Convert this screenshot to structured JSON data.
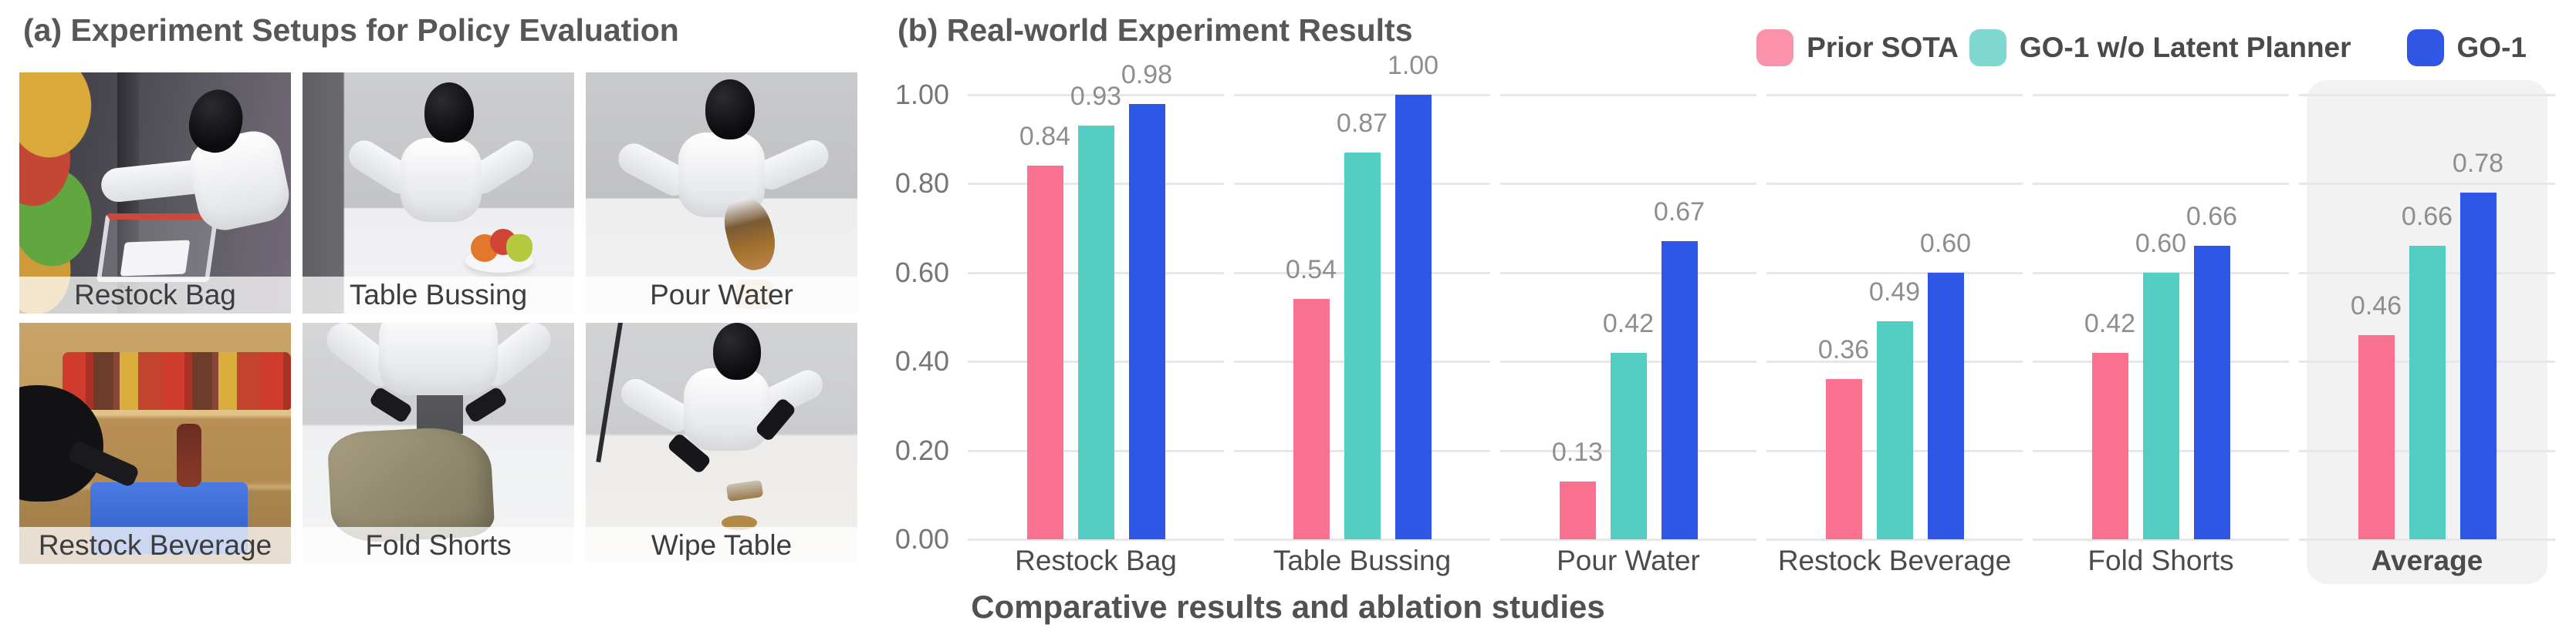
{
  "panel_a": {
    "title": "(a) Experiment Setups for Policy Evaluation",
    "tiles": [
      {
        "label": "Restock Bag"
      },
      {
        "label": "Table Bussing"
      },
      {
        "label": "Pour Water"
      },
      {
        "label": "Restock Beverage"
      },
      {
        "label": "Fold Shorts"
      },
      {
        "label": "Wipe Table"
      }
    ]
  },
  "panel_b": {
    "title": "(b) Real-world Experiment Results",
    "caption": "Comparative results and ablation studies"
  },
  "legend": [
    {
      "label": "Prior SOTA",
      "swatch_color": "#FA92AB"
    },
    {
      "label": "GO-1 w/o Latent Planner",
      "swatch_color": "#7ED8CF"
    },
    {
      "label": "GO-1",
      "swatch_color": "#3056E3"
    }
  ],
  "chart_data": {
    "type": "bar",
    "title": "(b) Real-world Experiment Results",
    "categories": [
      "Restock Bag",
      "Table Bussing",
      "Pour Water",
      "Restock Beverage",
      "Fold Shorts",
      "Average"
    ],
    "series": [
      {
        "name": "Prior SOTA",
        "color": "#FA7190",
        "values": [
          0.84,
          0.54,
          0.13,
          0.36,
          0.42,
          0.46
        ]
      },
      {
        "name": "GO-1 w/o Latent Planner",
        "color": "#54CDC3",
        "values": [
          0.93,
          0.87,
          0.42,
          0.49,
          0.6,
          0.66
        ]
      },
      {
        "name": "GO-1",
        "color": "#2F57E6",
        "values": [
          0.98,
          1.0,
          0.67,
          0.6,
          0.66,
          0.78
        ]
      }
    ],
    "xlabel": "",
    "ylabel": "",
    "ylim": [
      0,
      1
    ],
    "yticks": [
      {
        "value": 0.0,
        "label": "0.00"
      },
      {
        "value": 0.2,
        "label": "0.20"
      },
      {
        "value": 0.4,
        "label": "0.40"
      },
      {
        "value": 0.6,
        "label": "0.60"
      },
      {
        "value": 0.8,
        "label": "0.80"
      },
      {
        "value": 1.0,
        "label": "1.00"
      }
    ],
    "grid": true,
    "grid_color": "#E7E7E9",
    "value_labels": true,
    "legend_position": "top-right",
    "highlight_category": "Average",
    "highlight_color": "#F2F2F3"
  }
}
